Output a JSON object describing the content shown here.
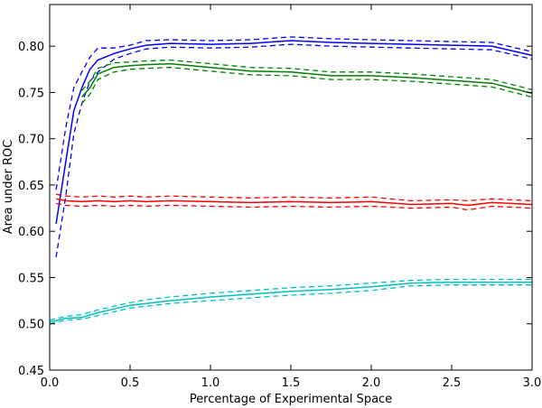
{
  "chart_data": {
    "type": "line",
    "title": "",
    "xlabel": "Percentage of Experimental Space",
    "ylabel": "Area under ROC",
    "xlim": [
      0.0,
      3.0
    ],
    "ylim": [
      0.45,
      0.845
    ],
    "xticks": [
      0.0,
      0.5,
      1.0,
      1.5,
      2.0,
      2.5,
      3.0
    ],
    "xtick_labels": [
      "0.0",
      "0.5",
      "1.0",
      "1.5",
      "2.0",
      "2.5",
      "3.0"
    ],
    "yticks": [
      0.45,
      0.5,
      0.55,
      0.6,
      0.65,
      0.7,
      0.75,
      0.8
    ],
    "ytick_labels": [
      "0.45",
      "0.50",
      "0.55",
      "0.60",
      "0.65",
      "0.70",
      "0.75",
      "0.80"
    ],
    "grid": false,
    "legend": false,
    "series": [
      {
        "color": "#0000ff",
        "x": [
          0.04,
          0.1,
          0.15,
          0.2,
          0.25,
          0.3,
          0.4,
          0.5,
          0.6,
          0.75,
          1.0,
          1.25,
          1.5,
          1.75,
          2.0,
          2.25,
          2.5,
          2.75,
          3.0
        ],
        "mean": [
          0.608,
          0.675,
          0.73,
          0.755,
          0.775,
          0.785,
          0.792,
          0.797,
          0.801,
          0.803,
          0.802,
          0.803,
          0.806,
          0.804,
          0.803,
          0.802,
          0.801,
          0.8,
          0.79
        ],
        "upper": [
          0.645,
          0.712,
          0.755,
          0.772,
          0.788,
          0.798,
          0.798,
          0.801,
          0.806,
          0.807,
          0.806,
          0.807,
          0.81,
          0.808,
          0.807,
          0.806,
          0.805,
          0.804,
          0.794
        ],
        "lower": [
          0.572,
          0.638,
          0.705,
          0.738,
          0.762,
          0.772,
          0.786,
          0.792,
          0.797,
          0.799,
          0.798,
          0.799,
          0.802,
          0.8,
          0.799,
          0.798,
          0.797,
          0.796,
          0.786
        ]
      },
      {
        "color": "#008000",
        "x": [
          0.2,
          0.25,
          0.3,
          0.4,
          0.5,
          0.6,
          0.75,
          1.0,
          1.25,
          1.5,
          1.75,
          2.0,
          2.25,
          2.5,
          2.75,
          3.0
        ],
        "mean": [
          0.745,
          0.755,
          0.77,
          0.777,
          0.779,
          0.78,
          0.781,
          0.777,
          0.773,
          0.772,
          0.768,
          0.768,
          0.766,
          0.763,
          0.76,
          0.749
        ],
        "upper": [
          0.752,
          0.762,
          0.776,
          0.782,
          0.783,
          0.784,
          0.785,
          0.781,
          0.777,
          0.776,
          0.772,
          0.772,
          0.77,
          0.767,
          0.764,
          0.753
        ],
        "lower": [
          0.738,
          0.748,
          0.764,
          0.772,
          0.775,
          0.776,
          0.777,
          0.773,
          0.769,
          0.768,
          0.764,
          0.764,
          0.762,
          0.759,
          0.756,
          0.745
        ]
      },
      {
        "color": "#ff0000",
        "x": [
          0.04,
          0.1,
          0.2,
          0.3,
          0.4,
          0.5,
          0.6,
          0.75,
          1.0,
          1.25,
          1.5,
          1.75,
          2.0,
          2.25,
          2.5,
          2.6,
          2.75,
          3.0
        ],
        "mean": [
          0.635,
          0.633,
          0.632,
          0.633,
          0.632,
          0.633,
          0.632,
          0.633,
          0.632,
          0.631,
          0.632,
          0.631,
          0.632,
          0.629,
          0.63,
          0.628,
          0.631,
          0.629
        ],
        "upper": [
          0.64,
          0.638,
          0.637,
          0.638,
          0.637,
          0.638,
          0.637,
          0.638,
          0.637,
          0.636,
          0.637,
          0.636,
          0.637,
          0.633,
          0.634,
          0.633,
          0.635,
          0.633
        ],
        "lower": [
          0.63,
          0.628,
          0.627,
          0.628,
          0.627,
          0.628,
          0.627,
          0.628,
          0.627,
          0.626,
          0.627,
          0.626,
          0.627,
          0.625,
          0.626,
          0.623,
          0.627,
          0.625
        ]
      },
      {
        "color": "#00bfbf",
        "x": [
          0.0,
          0.1,
          0.2,
          0.3,
          0.4,
          0.5,
          0.6,
          0.75,
          1.0,
          1.25,
          1.5,
          1.75,
          2.0,
          2.25,
          2.5,
          2.75,
          3.0
        ],
        "mean": [
          0.502,
          0.506,
          0.507,
          0.512,
          0.516,
          0.52,
          0.522,
          0.525,
          0.529,
          0.532,
          0.535,
          0.537,
          0.54,
          0.544,
          0.545,
          0.545,
          0.545
        ],
        "upper": [
          0.504,
          0.508,
          0.51,
          0.515,
          0.519,
          0.523,
          0.526,
          0.529,
          0.533,
          0.536,
          0.539,
          0.541,
          0.544,
          0.547,
          0.548,
          0.548,
          0.548
        ],
        "lower": [
          0.5,
          0.504,
          0.505,
          0.509,
          0.513,
          0.517,
          0.519,
          0.522,
          0.525,
          0.528,
          0.531,
          0.533,
          0.536,
          0.541,
          0.542,
          0.542,
          0.542
        ]
      }
    ]
  }
}
